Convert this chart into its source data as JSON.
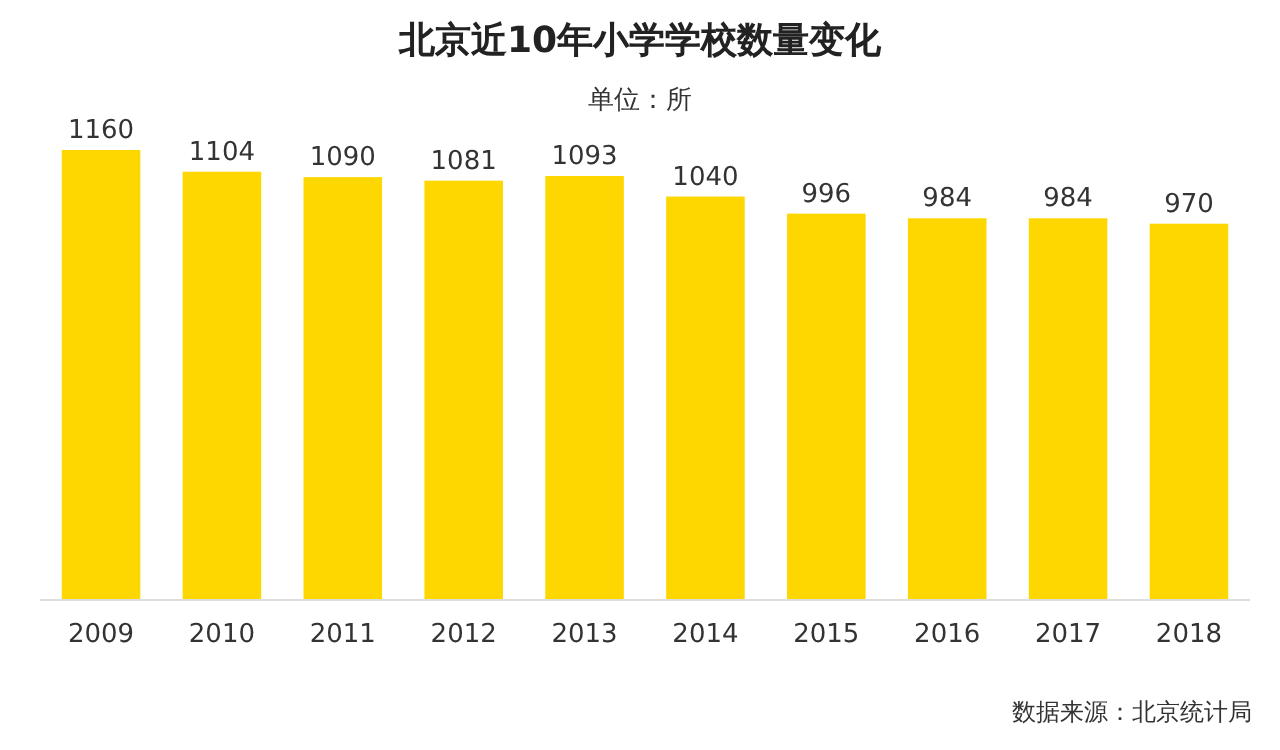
{
  "chart_data": {
    "type": "bar",
    "title": "北京近10年小学学校数量变化",
    "subtitle": "单位：所",
    "categories": [
      "2009",
      "2010",
      "2011",
      "2012",
      "2013",
      "2014",
      "2015",
      "2016",
      "2017",
      "2018"
    ],
    "values": [
      1160,
      1104,
      1090,
      1081,
      1093,
      1040,
      996,
      984,
      984,
      970
    ],
    "color": "#ffd700",
    "data_labels": true,
    "annotations": [
      "数据来源：北京统计局"
    ]
  }
}
